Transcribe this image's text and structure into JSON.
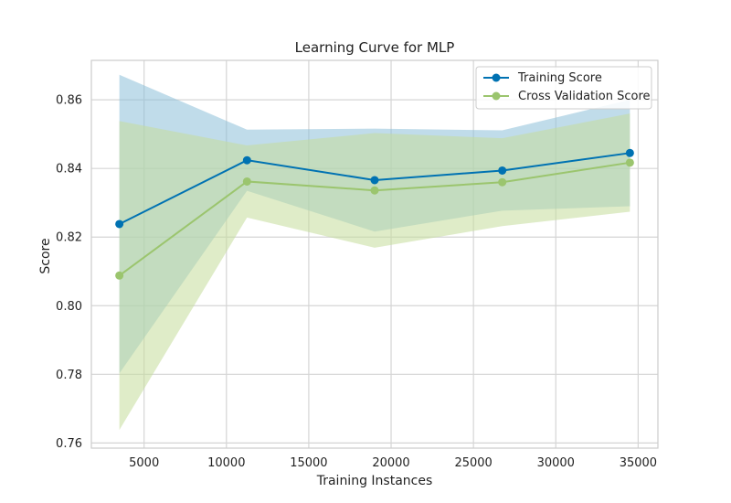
{
  "chart_data": {
    "type": "line",
    "title": "Learning Curve for MLP",
    "xlabel": "Training Instances",
    "ylabel": "Score",
    "xlim": [
      1800,
      36200
    ],
    "ylim": [
      0.7585,
      0.8715
    ],
    "xticks": [
      5000,
      10000,
      15000,
      20000,
      25000,
      30000,
      35000
    ],
    "xtick_labels": [
      "5000",
      "10000",
      "15000",
      "20000",
      "25000",
      "30000",
      "35000"
    ],
    "yticks": [
      0.76,
      0.78,
      0.8,
      0.82,
      0.84,
      0.86
    ],
    "ytick_labels": [
      "0.76",
      "0.78",
      "0.80",
      "0.82",
      "0.84",
      "0.86"
    ],
    "grid": true,
    "legend_position": "top-right",
    "x": [
      3500,
      11250,
      19000,
      26750,
      34500
    ],
    "series": [
      {
        "name": "Training Score",
        "color": "#0072b2",
        "band_color": "#8cbfd9",
        "values": [
          0.8238,
          0.8424,
          0.8366,
          0.8394,
          0.8445
        ],
        "upper": [
          0.8673,
          0.8513,
          0.8516,
          0.8511,
          0.86
        ],
        "lower": [
          0.7803,
          0.8335,
          0.8216,
          0.8277,
          0.829
        ]
      },
      {
        "name": "Cross Validation Score",
        "color": "#9bc56e",
        "band_color": "#c5dc9a",
        "values": [
          0.8088,
          0.8362,
          0.8336,
          0.836,
          0.8417
        ],
        "upper": [
          0.8538,
          0.8467,
          0.8503,
          0.8488,
          0.856
        ],
        "lower": [
          0.7638,
          0.8257,
          0.8169,
          0.8232,
          0.8274
        ]
      }
    ]
  }
}
